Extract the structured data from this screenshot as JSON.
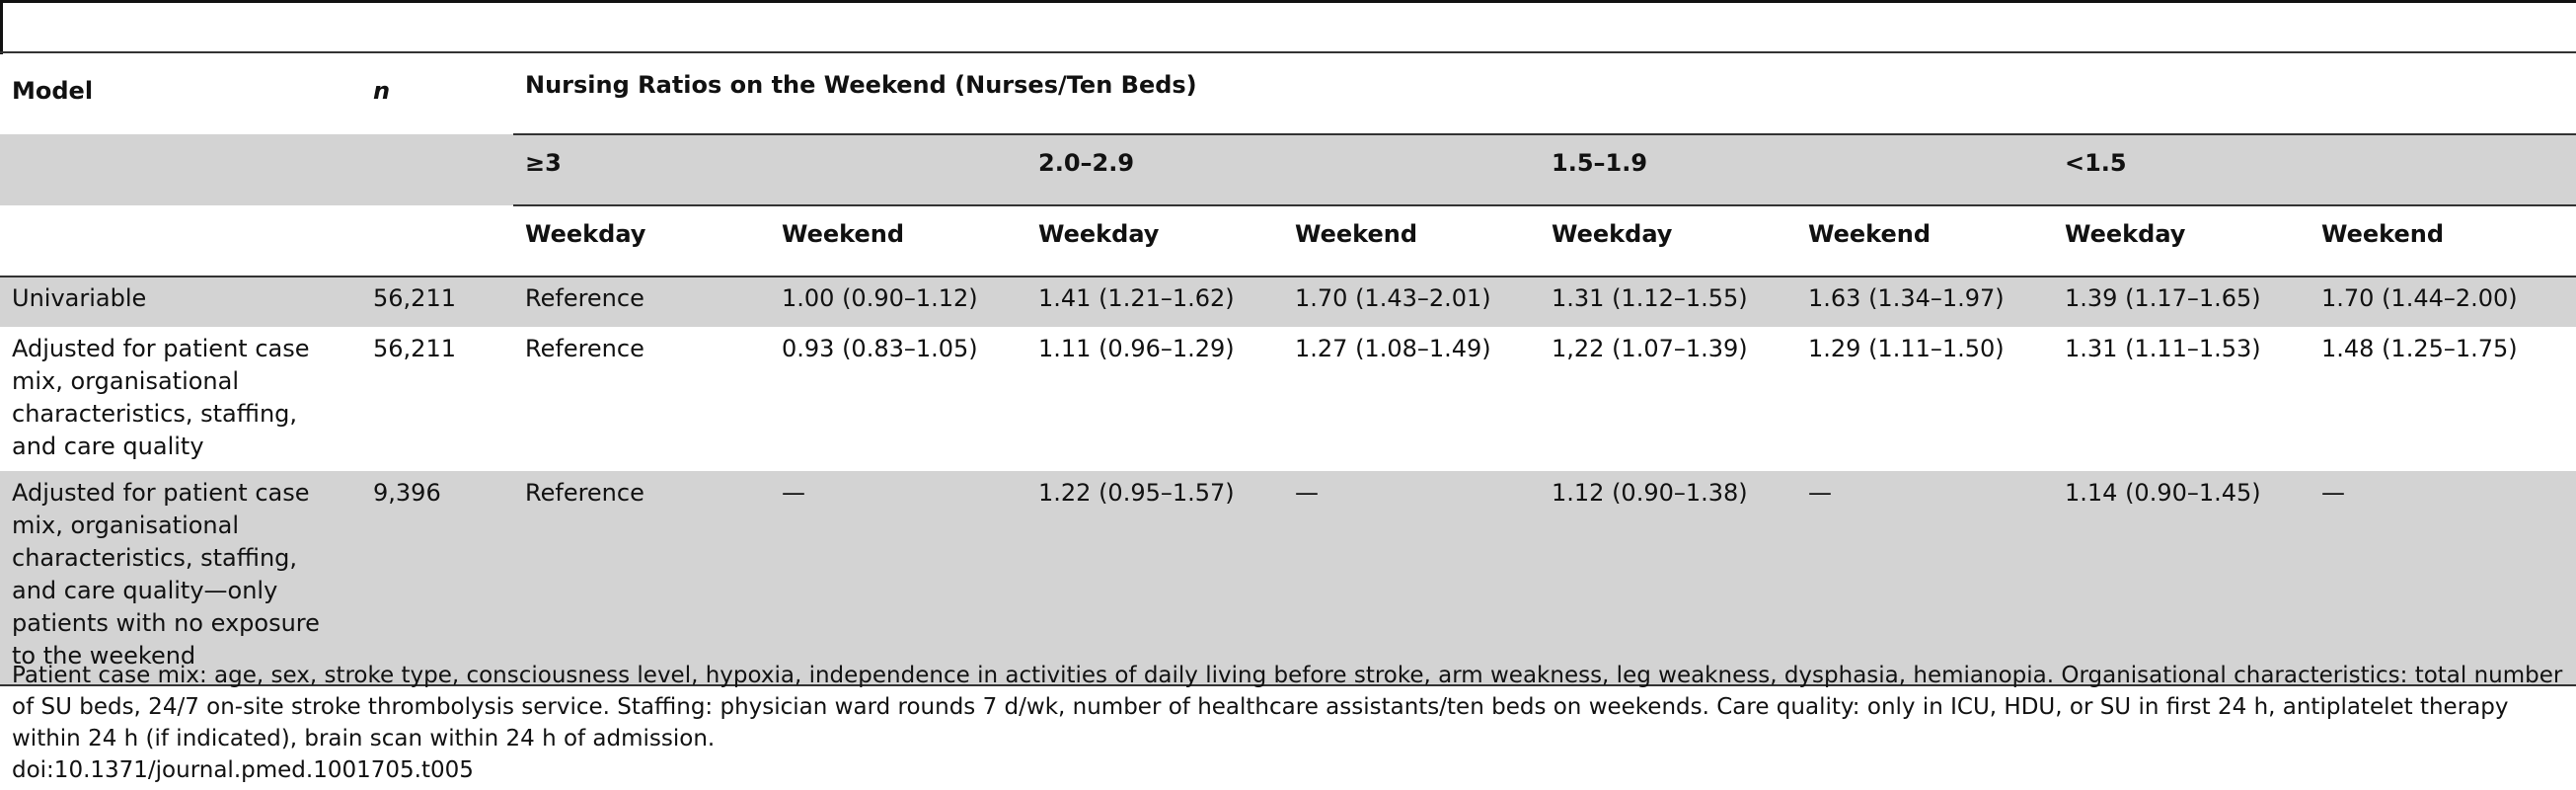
{
  "header": {
    "model": "Model",
    "n": "n",
    "group_title": "Nursing Ratios on the Weekend (Nurses/Ten Beds)",
    "groups": [
      "≥3",
      "2.0–2.9",
      "1.5–1.9",
      "<1.5"
    ],
    "sub": [
      "Weekday",
      "Weekend"
    ]
  },
  "rows": [
    {
      "model": "Univariable",
      "n": "56,211",
      "values": [
        "Reference",
        "1.00 (0.90–1.12)",
        "1.41 (1.21–1.62)",
        "1.70 (1.43–2.01)",
        "1.31 (1.12–1.55)",
        "1.63 (1.34–1.97)",
        "1.39 (1.17–1.65)",
        "1.70 (1.44–2.00)"
      ]
    },
    {
      "model": "Adjusted for patient case mix, organisational characteristics, staffing, and care quality",
      "n": "56,211",
      "values": [
        "Reference",
        "0.93 (0.83–1.05)",
        "1.11 (0.96–1.29)",
        "1.27 (1.08–1.49)",
        "1,22 (1.07–1.39)",
        "1.29 (1.11–1.50)",
        "1.31 (1.11–1.53)",
        "1.48 (1.25–1.75)"
      ]
    },
    {
      "model": "Adjusted for patient case mix, organisational characteristics, staffing, and care quality—only patients with no exposure to the weekend",
      "n": "9,396",
      "values": [
        "Reference",
        "—",
        "1.22 (0.95–1.57)",
        "—",
        "1.12 (0.90–1.38)",
        "—",
        "1.14 (0.90–1.45)",
        "—"
      ]
    }
  ],
  "footnote": "Patient case mix: age, sex, stroke type, consciousness level, hypoxia, independence in activities of daily living before stroke, arm weakness, leg weakness, dysphasia, hemianopia. Organisational characteristics: total number of SU beds, 24/7 on-site stroke thrombolysis service. Staffing: physician ward rounds 7 d/wk, number of healthcare assistants/ten beds on weekends. Care quality: only in ICU, HDU, or SU in first 24 h, antiplatelet therapy within 24 h (if indicated), brain scan within 24 h of admission.",
  "doi": "doi:10.1371/journal.pmed.1001705.t005"
}
